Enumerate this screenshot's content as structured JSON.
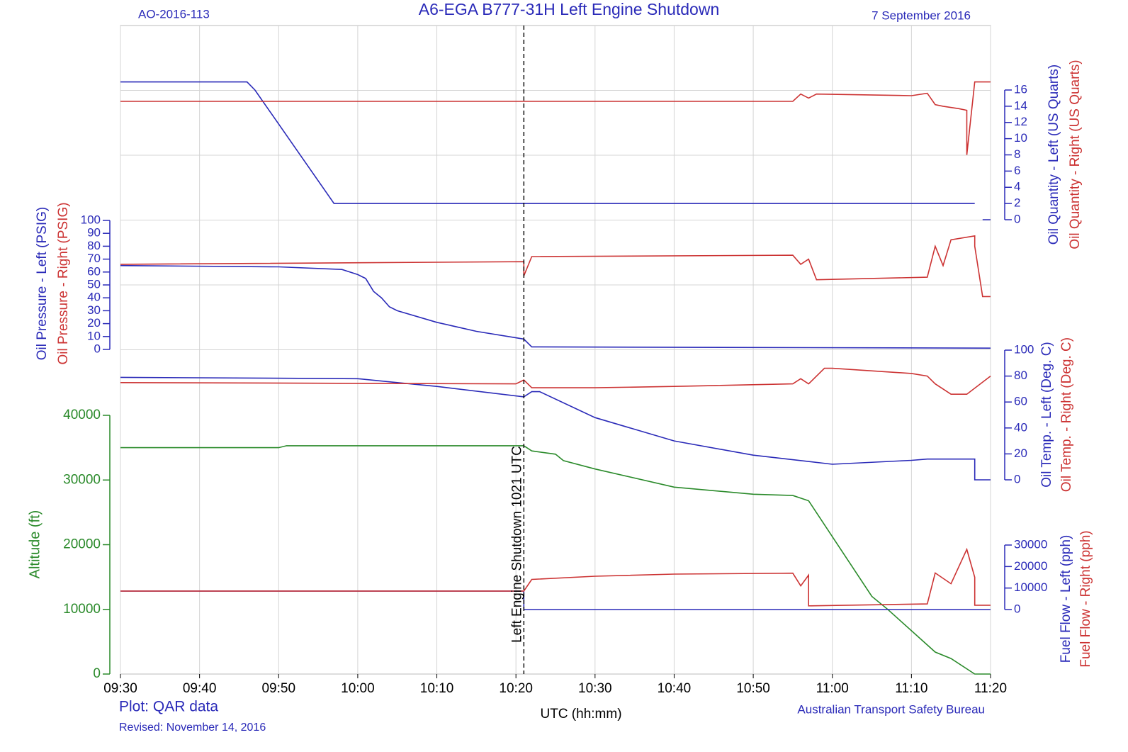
{
  "page": {
    "report_id": "AO-2016-113",
    "title": "A6-EGA  B777-31H  Left Engine Shutdown",
    "date": "7 September 2016",
    "plot_source": "Plot: QAR data",
    "revised": "Revised: November 14, 2016",
    "agency": "Australian Transport Safety Bureau"
  },
  "x_axis": {
    "xlim": [
      "09:30",
      "11:20"
    ],
    "xticks": [
      "09:30",
      "09:40",
      "09:50",
      "10:00",
      "10:10",
      "10:20",
      "10:30",
      "10:40",
      "10:50",
      "11:00",
      "11:10",
      "11:20"
    ],
    "label": "UTC (hh:mm)",
    "grid": true
  },
  "annotation": {
    "x": "10:21",
    "text": "Left Engine Shutdown 1021 UTC"
  },
  "chart_data": [
    {
      "type": "line",
      "axis_side": "right",
      "ylim": [
        0,
        16
      ],
      "yticks": [
        0,
        2,
        4,
        6,
        8,
        10,
        12,
        14,
        16
      ],
      "series": [
        {
          "name": "Oil Quantity - Left (US Quarts)",
          "color": "#2a2ab8",
          "x": [
            "09:30",
            "09:46",
            "09:47",
            "09:57",
            "11:18",
            "11:18",
            "11:19",
            "11:20"
          ],
          "values": [
            17,
            17,
            16,
            2,
            2,
            null,
            0,
            0
          ]
        },
        {
          "name": "Oil Quantity - Right (US Quarts)",
          "color": "#cc3333",
          "x": [
            "09:30",
            "10:21",
            "10:55",
            "10:56",
            "10:57",
            "10:58",
            "11:10",
            "11:12",
            "11:13",
            "11:14",
            "11:16",
            "11:17",
            "11:17",
            "11:18",
            "11:20"
          ],
          "values": [
            14.6,
            14.6,
            14.6,
            15.5,
            15,
            15.5,
            15.3,
            15.6,
            14.2,
            14,
            13.7,
            13.5,
            8,
            17,
            17
          ]
        }
      ]
    },
    {
      "type": "line",
      "axis_side": "left",
      "ylim": [
        0,
        100
      ],
      "yticks": [
        0,
        10,
        20,
        30,
        40,
        50,
        60,
        70,
        80,
        90,
        100
      ],
      "series": [
        {
          "name": "Oil Pressure - Left (PSIG)",
          "color": "#2a2ab8",
          "x": [
            "09:30",
            "09:50",
            "09:58",
            "10:00",
            "10:01",
            "10:02",
            "10:03",
            "10:04",
            "10:05",
            "10:10",
            "10:15",
            "10:20",
            "10:21",
            "10:22",
            "11:20"
          ],
          "values": [
            65,
            64,
            62,
            58,
            55,
            45,
            40,
            33,
            30,
            21,
            14,
            9,
            8,
            2,
            1
          ]
        },
        {
          "name": "Oil Pressure - Right (PSIG)",
          "color": "#cc3333",
          "x": [
            "09:30",
            "10:21",
            "10:21",
            "10:22",
            "10:55",
            "10:56",
            "10:57",
            "10:58",
            "11:12",
            "11:13",
            "11:14",
            "11:15",
            "11:18",
            "11:18",
            "11:19",
            "11:20"
          ],
          "values": [
            66,
            68,
            57,
            72,
            73,
            66,
            70,
            54,
            56,
            80,
            65,
            85,
            88,
            80,
            41,
            41
          ]
        }
      ]
    },
    {
      "type": "line",
      "axis_side": "right",
      "ylim": [
        0,
        100
      ],
      "yticks": [
        0,
        20,
        40,
        60,
        80,
        100
      ],
      "series": [
        {
          "name": "Oil Temp. - Left (Deg. C)",
          "color": "#2a2ab8",
          "x": [
            "09:30",
            "10:00",
            "10:05",
            "10:10",
            "10:21",
            "10:22",
            "10:23",
            "10:30",
            "10:40",
            "10:50",
            "11:00",
            "11:10",
            "11:12",
            "11:18",
            "11:18",
            "11:20"
          ],
          "values": [
            79,
            78,
            75,
            72,
            64,
            68,
            68,
            48,
            30,
            19,
            12,
            15,
            16,
            16,
            0,
            0
          ]
        },
        {
          "name": "Oil Temp. - Right (Deg. C)",
          "color": "#cc3333",
          "x": [
            "09:30",
            "10:20",
            "10:21",
            "10:22",
            "10:30",
            "10:40",
            "10:55",
            "10:56",
            "10:57",
            "10:59",
            "11:00",
            "11:10",
            "11:12",
            "11:13",
            "11:15",
            "11:17",
            "11:20"
          ],
          "values": [
            75,
            74,
            77,
            71,
            71,
            72,
            74,
            78,
            74,
            86,
            86,
            82,
            80,
            74,
            66,
            66,
            80
          ]
        }
      ]
    },
    {
      "type": "line",
      "axis_side": "left",
      "ylabel": "Altitude (ft)",
      "ylim": [
        0,
        40000
      ],
      "yticks": [
        0,
        10000,
        20000,
        30000,
        40000
      ],
      "series": [
        {
          "color": "#2a8a2a",
          "x": [
            "09:30",
            "09:50",
            "09:51",
            "10:21",
            "10:22",
            "10:25",
            "10:26",
            "10:30",
            "10:40",
            "10:50",
            "10:55",
            "10:57",
            "11:05",
            "11:07",
            "11:13",
            "11:15",
            "11:18",
            "11:20"
          ],
          "values": [
            35000,
            35000,
            35300,
            35300,
            34500,
            34000,
            33000,
            31700,
            28900,
            27800,
            27600,
            26800,
            12000,
            10000,
            3400,
            2400,
            0,
            0
          ]
        }
      ]
    },
    {
      "type": "line",
      "axis_side": "right",
      "ylim": [
        0,
        30000
      ],
      "yticks": [
        0,
        10000,
        20000,
        30000
      ],
      "series": [
        {
          "name": "Fuel Flow - Left (pph)",
          "color": "#2a2ab8",
          "x": [
            "09:30",
            "10:21",
            "10:21",
            "11:20"
          ],
          "values": [
            8600,
            8600,
            0,
            0
          ]
        },
        {
          "name": "Fuel Flow - Right (pph)",
          "color": "#cc3333",
          "x": [
            "09:30",
            "10:21",
            "10:22",
            "10:30",
            "10:40",
            "10:55",
            "10:56",
            "10:57",
            "10:57",
            "11:12",
            "11:13",
            "11:15",
            "11:17",
            "11:18",
            "11:18",
            "11:20"
          ],
          "values": [
            8600,
            8600,
            14000,
            15500,
            16500,
            16900,
            11000,
            16000,
            1700,
            2600,
            17000,
            12000,
            28000,
            15000,
            2000,
            2000
          ]
        }
      ]
    }
  ]
}
